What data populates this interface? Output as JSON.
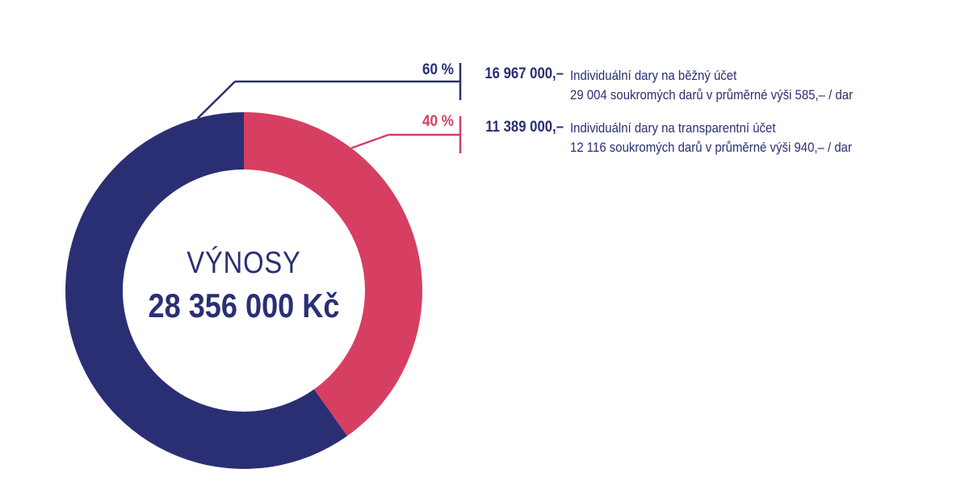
{
  "colors": {
    "navy": "#2a2f74",
    "pink": "#d63f62"
  },
  "center": {
    "title": "VÝNOSY",
    "total": "28 356 000 Kč"
  },
  "chart_data": {
    "type": "pie",
    "variant": "donut",
    "title": "VÝNOSY",
    "total": "28 356 000 Kč",
    "slices": [
      {
        "key": "bezny",
        "percent_label": "60 %",
        "amount_label": "16 967 000,–",
        "value": 16967000,
        "label": "Individuální dary na běžný účet",
        "note": "29 004 soukromých darů v průměrné výši 585,– / dar",
        "color": "#2a2f74"
      },
      {
        "key": "transparentni",
        "percent_label": "40 %",
        "amount_label": "11 389 000,–",
        "value": 11389000,
        "label": "Individuální dary na transparentní účet",
        "note": "12 116 soukromých darů v průměrné výši 940,– / dar",
        "color": "#d63f62"
      }
    ]
  }
}
